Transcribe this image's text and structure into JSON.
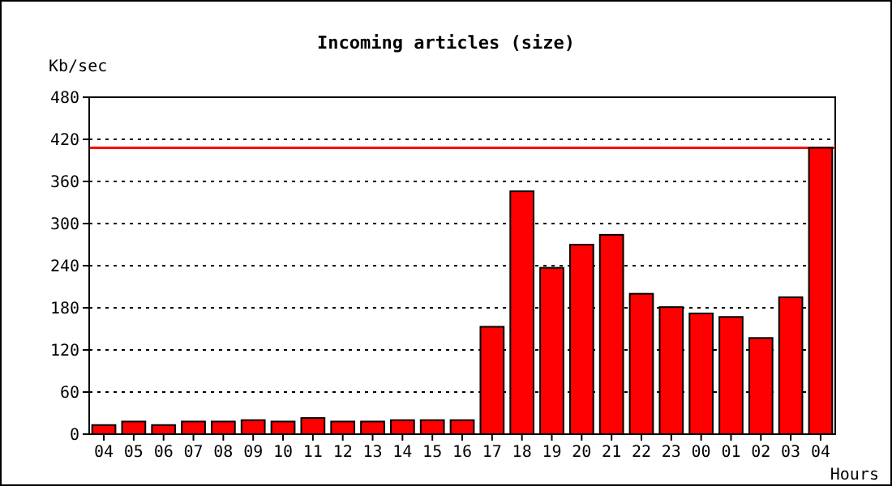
{
  "chart_data": {
    "type": "bar",
    "title": "Incoming articles (size)",
    "xlabel": "Hours",
    "ylabel": "Kb/sec",
    "categories": [
      "04",
      "05",
      "06",
      "07",
      "08",
      "09",
      "10",
      "11",
      "12",
      "13",
      "14",
      "15",
      "16",
      "17",
      "18",
      "19",
      "20",
      "21",
      "22",
      "23",
      "00",
      "01",
      "02",
      "03",
      "04"
    ],
    "values": [
      13,
      18,
      13,
      18,
      18,
      20,
      18,
      23,
      18,
      18,
      20,
      20,
      20,
      153,
      346,
      237,
      270,
      284,
      200,
      181,
      172,
      167,
      137,
      195,
      408
    ],
    "color": "#ff0000",
    "ylim": [
      0,
      480
    ],
    "yticks": [
      0,
      60,
      120,
      180,
      240,
      300,
      360,
      420,
      480
    ],
    "grid": "y",
    "ref_lines": [
      {
        "axis": "y",
        "value": 408,
        "color": "#ff0000"
      }
    ]
  }
}
